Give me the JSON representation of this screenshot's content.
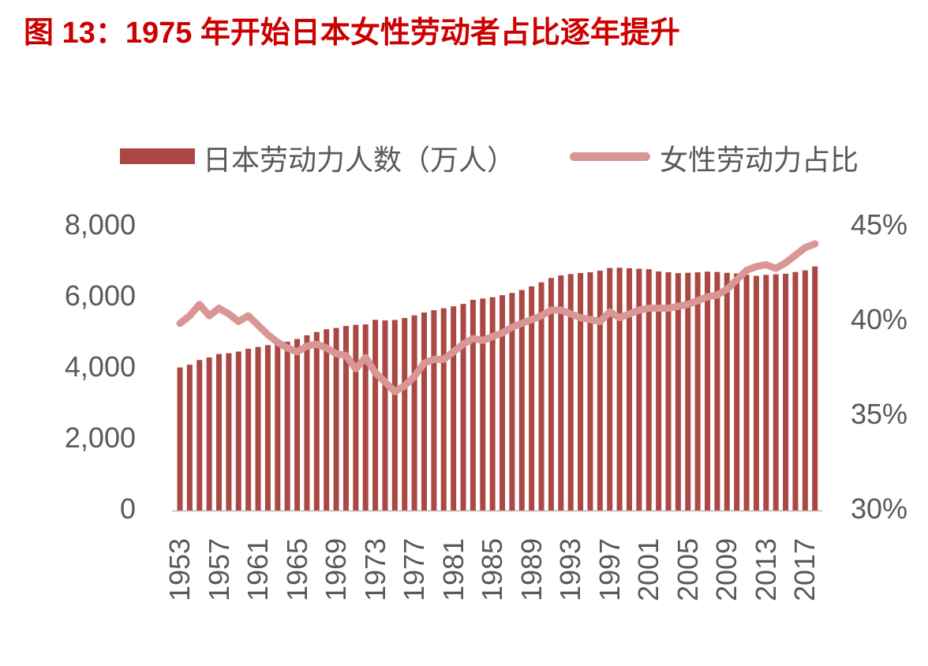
{
  "title": {
    "text": "图 13：1975 年开始日本女性劳动者占比逐年提升"
  },
  "legend": {
    "items": [
      {
        "label": "日本劳动力人数（万人）",
        "swatch": "bar",
        "color": "#AA4843"
      },
      {
        "label": "女性劳动力占比",
        "swatch": "line",
        "color": "#D99694"
      }
    ],
    "position": "top"
  },
  "colors": {
    "title": "#CC0000",
    "bar": "#AA4843",
    "line": "#D99694",
    "axis_text": "#595959",
    "axis_line": "#D9D9D9",
    "background": "#FFFFFF"
  },
  "chart_data": {
    "type": "bar",
    "subtype": "combo-bar-line",
    "title": "图 13：1975 年开始日本女性劳动者占比逐年提升",
    "grid": false,
    "legend_position": "top",
    "categories": [
      1953,
      1954,
      1955,
      1956,
      1957,
      1958,
      1959,
      1960,
      1961,
      1962,
      1963,
      1964,
      1965,
      1966,
      1967,
      1968,
      1969,
      1970,
      1971,
      1972,
      1973,
      1974,
      1975,
      1976,
      1977,
      1978,
      1979,
      1980,
      1981,
      1982,
      1983,
      1984,
      1985,
      1986,
      1987,
      1988,
      1989,
      1990,
      1991,
      1992,
      1993,
      1994,
      1995,
      1996,
      1997,
      1998,
      1999,
      2000,
      2001,
      2002,
      2003,
      2004,
      2005,
      2006,
      2007,
      2008,
      2009,
      2010,
      2011,
      2012,
      2013,
      2014,
      2015,
      2016,
      2017,
      2018
    ],
    "series": [
      {
        "name": "日本劳动力人数（万人）",
        "type": "bar",
        "axis": "left",
        "color": "#AA4843",
        "values": [
          3986,
          4063,
          4194,
          4268,
          4363,
          4387,
          4433,
          4511,
          4562,
          4614,
          4652,
          4710,
          4787,
          4891,
          4983,
          5061,
          5098,
          5153,
          5186,
          5199,
          5326,
          5310,
          5323,
          5378,
          5452,
          5532,
          5596,
          5650,
          5707,
          5774,
          5889,
          5927,
          5963,
          6020,
          6084,
          6166,
          6270,
          6384,
          6505,
          6578,
          6615,
          6645,
          6666,
          6711,
          6787,
          6793,
          6779,
          6766,
          6752,
          6689,
          6666,
          6642,
          6651,
          6664,
          6684,
          6674,
          6650,
          6632,
          6596,
          6565,
          6593,
          6609,
          6625,
          6673,
          6720,
          6830
        ]
      },
      {
        "name": "女性劳动力占比",
        "type": "line",
        "axis": "right",
        "color": "#D99694",
        "values": [
          39.8,
          40.2,
          40.8,
          40.2,
          40.6,
          40.3,
          39.9,
          40.2,
          39.7,
          39.2,
          38.8,
          38.5,
          38.3,
          38.6,
          38.7,
          38.5,
          38.2,
          38.1,
          37.4,
          38.0,
          37.2,
          36.7,
          36.2,
          36.5,
          37.0,
          37.7,
          37.9,
          37.9,
          38.3,
          38.7,
          39.0,
          38.9,
          39.1,
          39.3,
          39.6,
          39.8,
          40.0,
          40.2,
          40.5,
          40.5,
          40.3,
          40.1,
          40.0,
          39.9,
          40.4,
          40.1,
          40.3,
          40.5,
          40.6,
          40.6,
          40.6,
          40.7,
          40.8,
          41.0,
          41.2,
          41.3,
          41.6,
          42.1,
          42.6,
          42.8,
          42.9,
          42.7,
          43.0,
          43.4,
          43.8,
          44.0
        ]
      }
    ],
    "left_axis": {
      "min": 0,
      "max": 8000,
      "ticks": [
        {
          "v": 0,
          "label": "0"
        },
        {
          "v": 2000,
          "label": "2,000"
        },
        {
          "v": 4000,
          "label": "4,000"
        },
        {
          "v": 6000,
          "label": "6,000"
        },
        {
          "v": 8000,
          "label": "8,000"
        }
      ]
    },
    "right_axis": {
      "min": 30,
      "max": 45,
      "ticks": [
        {
          "v": 30,
          "label": "30%"
        },
        {
          "v": 35,
          "label": "35%"
        },
        {
          "v": 40,
          "label": "40%"
        },
        {
          "v": 45,
          "label": "45%"
        }
      ]
    },
    "x_axis": {
      "tick_labels": [
        "1953",
        "1957",
        "1961",
        "1965",
        "1969",
        "1973",
        "1977",
        "1981",
        "1985",
        "1989",
        "1993",
        "1997",
        "2001",
        "2005",
        "2009",
        "2013",
        "2017"
      ],
      "tick_step_years": 4
    }
  }
}
